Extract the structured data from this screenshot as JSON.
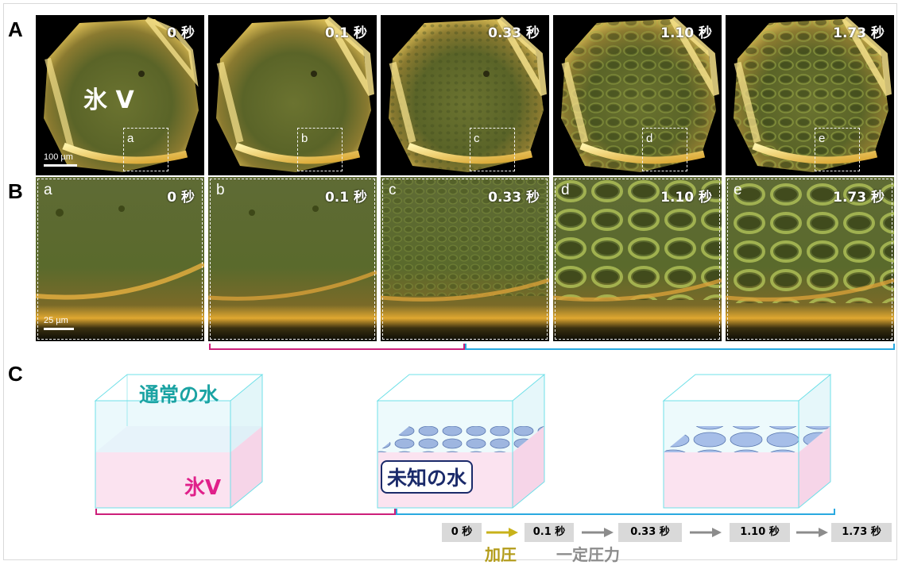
{
  "sections": {
    "a": "A",
    "b": "B",
    "c": "C"
  },
  "rowA": {
    "panels": [
      {
        "time": "0 秒",
        "zoom_letter": "a"
      },
      {
        "time": "0.1 秒",
        "zoom_letter": "b"
      },
      {
        "time": "0.33 秒",
        "zoom_letter": "c"
      },
      {
        "time": "1.10 秒",
        "zoom_letter": "d"
      },
      {
        "time": "1.73 秒",
        "zoom_letter": "e"
      }
    ],
    "main_label": "氷 V",
    "scale_label": "100 µm"
  },
  "rowB": {
    "panels": [
      {
        "letter": "a",
        "time": "0 秒"
      },
      {
        "letter": "b",
        "time": "0.1 秒"
      },
      {
        "letter": "c",
        "time": "0.33 秒"
      },
      {
        "letter": "d",
        "time": "1.10 秒"
      },
      {
        "letter": "e",
        "time": "1.73 秒"
      }
    ],
    "scale_label": "25 µm"
  },
  "colors": {
    "magenta": "#cc1f7a",
    "cyan": "#29a9e0",
    "water_text": "#1ba3a3",
    "ice_text": "#e0208a",
    "unknown_text": "#1a2a6a",
    "pressurize": "#b39c1a",
    "constant": "#8c8c8c",
    "arrow_yellow": "#c8b21a",
    "arrow_gray": "#8c8c8c"
  },
  "diagram": {
    "normal_water": "通常の水",
    "ice_v": "氷V",
    "unknown_water": "未知の水"
  },
  "timeline": {
    "times": [
      "0 秒",
      "0.1 秒",
      "0.33 秒",
      "1.10 秒",
      "1.73 秒"
    ],
    "pressurize": "加圧",
    "constant_pressure": "一定圧力"
  }
}
